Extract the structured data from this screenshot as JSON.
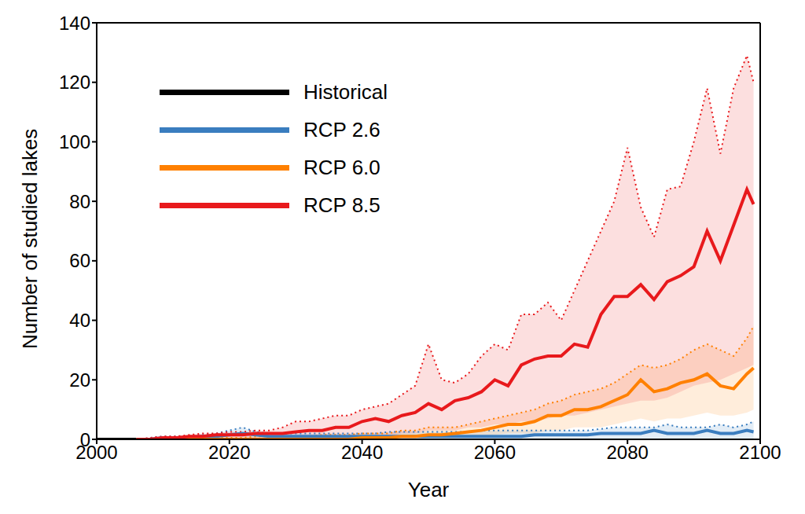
{
  "chart_data": {
    "type": "line",
    "x_label": "Year",
    "y_label": "Number of studied lakes",
    "legend": "upper left",
    "grid": false,
    "xlim": [
      2000,
      2100
    ],
    "xticks": [
      2000,
      2020,
      2040,
      2060,
      2080,
      2100
    ],
    "ylim": [
      0,
      140
    ],
    "yticks": [
      0,
      20,
      40,
      60,
      80,
      100,
      120,
      140
    ],
    "x": [
      2000,
      2002,
      2004,
      2006,
      2008,
      2010,
      2012,
      2014,
      2016,
      2018,
      2020,
      2022,
      2024,
      2026,
      2028,
      2030,
      2032,
      2034,
      2036,
      2038,
      2040,
      2042,
      2044,
      2046,
      2048,
      2050,
      2052,
      2054,
      2056,
      2058,
      2060,
      2062,
      2064,
      2066,
      2068,
      2070,
      2072,
      2074,
      2076,
      2078,
      2080,
      2082,
      2084,
      2086,
      2088,
      2090,
      2092,
      2094,
      2096,
      2098,
      2099
    ],
    "series": [
      {
        "name": "Historical",
        "color": "#000000",
        "line_style": "solid",
        "values": [
          0,
          0,
          0,
          0,
          null,
          null,
          null,
          null,
          null,
          null,
          null,
          null,
          null,
          null,
          null,
          null,
          null,
          null,
          null,
          null,
          null,
          null,
          null,
          null,
          null,
          null,
          null,
          null,
          null,
          null,
          null,
          null,
          null,
          null,
          null,
          null,
          null,
          null,
          null,
          null,
          null,
          null,
          null,
          null,
          null,
          null,
          null,
          null,
          null,
          null,
          null
        ]
      },
      {
        "name": "RCP 2.6",
        "color": "#3a7dbf",
        "line_style": "solid",
        "values": [
          null,
          null,
          null,
          0,
          0,
          0.5,
          0.5,
          0.5,
          1,
          1,
          1.5,
          2,
          1.5,
          1,
          1,
          1,
          1,
          1,
          1,
          1,
          1,
          1,
          1,
          1,
          1,
          1,
          1,
          1,
          1,
          1,
          1,
          1,
          1,
          1.5,
          1.5,
          1.5,
          1.5,
          1.5,
          2,
          2,
          2,
          2,
          3,
          2,
          2,
          2,
          3,
          2,
          2,
          3,
          2.5
        ],
        "lower": [
          null,
          null,
          null,
          0,
          0,
          0,
          0,
          0,
          0,
          0,
          0,
          0,
          0,
          0,
          0,
          0,
          0,
          0,
          0,
          0,
          0,
          0,
          0,
          0,
          0,
          0,
          0,
          0,
          0,
          0,
          0,
          0,
          0,
          0,
          0,
          0,
          0,
          0,
          0,
          0,
          0,
          0,
          0,
          0,
          0,
          0,
          0,
          0,
          0,
          0,
          0
        ],
        "upper": [
          null,
          null,
          null,
          0,
          0.5,
          1,
          1,
          1,
          1.5,
          2,
          3,
          4,
          2.5,
          2,
          2,
          2,
          2,
          2,
          2,
          2,
          2,
          2,
          2.5,
          2.5,
          2.5,
          2.5,
          2.5,
          2.5,
          2.5,
          3,
          3,
          3,
          3,
          3,
          3,
          3,
          3,
          3,
          3.5,
          4,
          4,
          4,
          4,
          5,
          4,
          4,
          4,
          5,
          4,
          5,
          6
        ]
      },
      {
        "name": "RCP 6.0",
        "color": "#ff8000",
        "line_style": "solid",
        "values": [
          null,
          null,
          null,
          0,
          0,
          0,
          0,
          0,
          0,
          0,
          0,
          0,
          0,
          0,
          0,
          0,
          0,
          0,
          0,
          0,
          0.5,
          0.5,
          0.5,
          1,
          1,
          1.5,
          1.5,
          2,
          2.5,
          3,
          4,
          5,
          5,
          6,
          8,
          8,
          10,
          10,
          11,
          13,
          15,
          20,
          16,
          17,
          19,
          20,
          22,
          18,
          17,
          22,
          24
        ],
        "lower": [
          null,
          null,
          null,
          0,
          0,
          0,
          0,
          0,
          0,
          0,
          0,
          0,
          0,
          0,
          0,
          0,
          0,
          0,
          0,
          0,
          0,
          0,
          0,
          0,
          0,
          0.5,
          0.5,
          0.5,
          1,
          1,
          1.5,
          2,
          2,
          2,
          3,
          3,
          4,
          4,
          4,
          5,
          6,
          7,
          6,
          7,
          7,
          8,
          9,
          8,
          8,
          9,
          10
        ],
        "upper": [
          null,
          null,
          null,
          0,
          0,
          0,
          0,
          0,
          0.5,
          0.5,
          0.5,
          0.5,
          1,
          1,
          1,
          1,
          1,
          1.5,
          1.5,
          1.5,
          2,
          2,
          2,
          3,
          3,
          4,
          4,
          4,
          5,
          6,
          7,
          8,
          9,
          10,
          12,
          13,
          15,
          16,
          17,
          19,
          22,
          25,
          24,
          25,
          27,
          30,
          32,
          30,
          28,
          34,
          38
        ]
      },
      {
        "name": "RCP 8.5",
        "color": "#e8191c",
        "line_style": "solid",
        "values": [
          null,
          null,
          null,
          0,
          0,
          0.5,
          0.5,
          1,
          1,
          1.5,
          1.5,
          1.5,
          2,
          2,
          2,
          2.5,
          3,
          3,
          4,
          4,
          6,
          7,
          6,
          8,
          9,
          12,
          10,
          13,
          14,
          16,
          20,
          18,
          25,
          27,
          28,
          28,
          32,
          31,
          42,
          48,
          48,
          52,
          47,
          53,
          55,
          58,
          70,
          60,
          72,
          84,
          79
        ],
        "lower": [
          null,
          null,
          null,
          0,
          0,
          0,
          0,
          0,
          0,
          0,
          0,
          0,
          0,
          0,
          0,
          0,
          0,
          0,
          0,
          0,
          1,
          1,
          1,
          2,
          2,
          3,
          3,
          3,
          4,
          4,
          5,
          5,
          6,
          6,
          7,
          8,
          8,
          9,
          10,
          11,
          12,
          13,
          13,
          14,
          16,
          18,
          19,
          20,
          22,
          24,
          25
        ],
        "upper": [
          null,
          null,
          null,
          0,
          0.5,
          1,
          1,
          1.5,
          2,
          2,
          2.5,
          2.5,
          3,
          3,
          4,
          6,
          6,
          7,
          8,
          8,
          10,
          11,
          12,
          15,
          18,
          32,
          20,
          19,
          22,
          28,
          32,
          30,
          42,
          42,
          46,
          40,
          50,
          60,
          70,
          80,
          98,
          78,
          68,
          84,
          85,
          100,
          118,
          96,
          118,
          129,
          120
        ]
      }
    ]
  }
}
